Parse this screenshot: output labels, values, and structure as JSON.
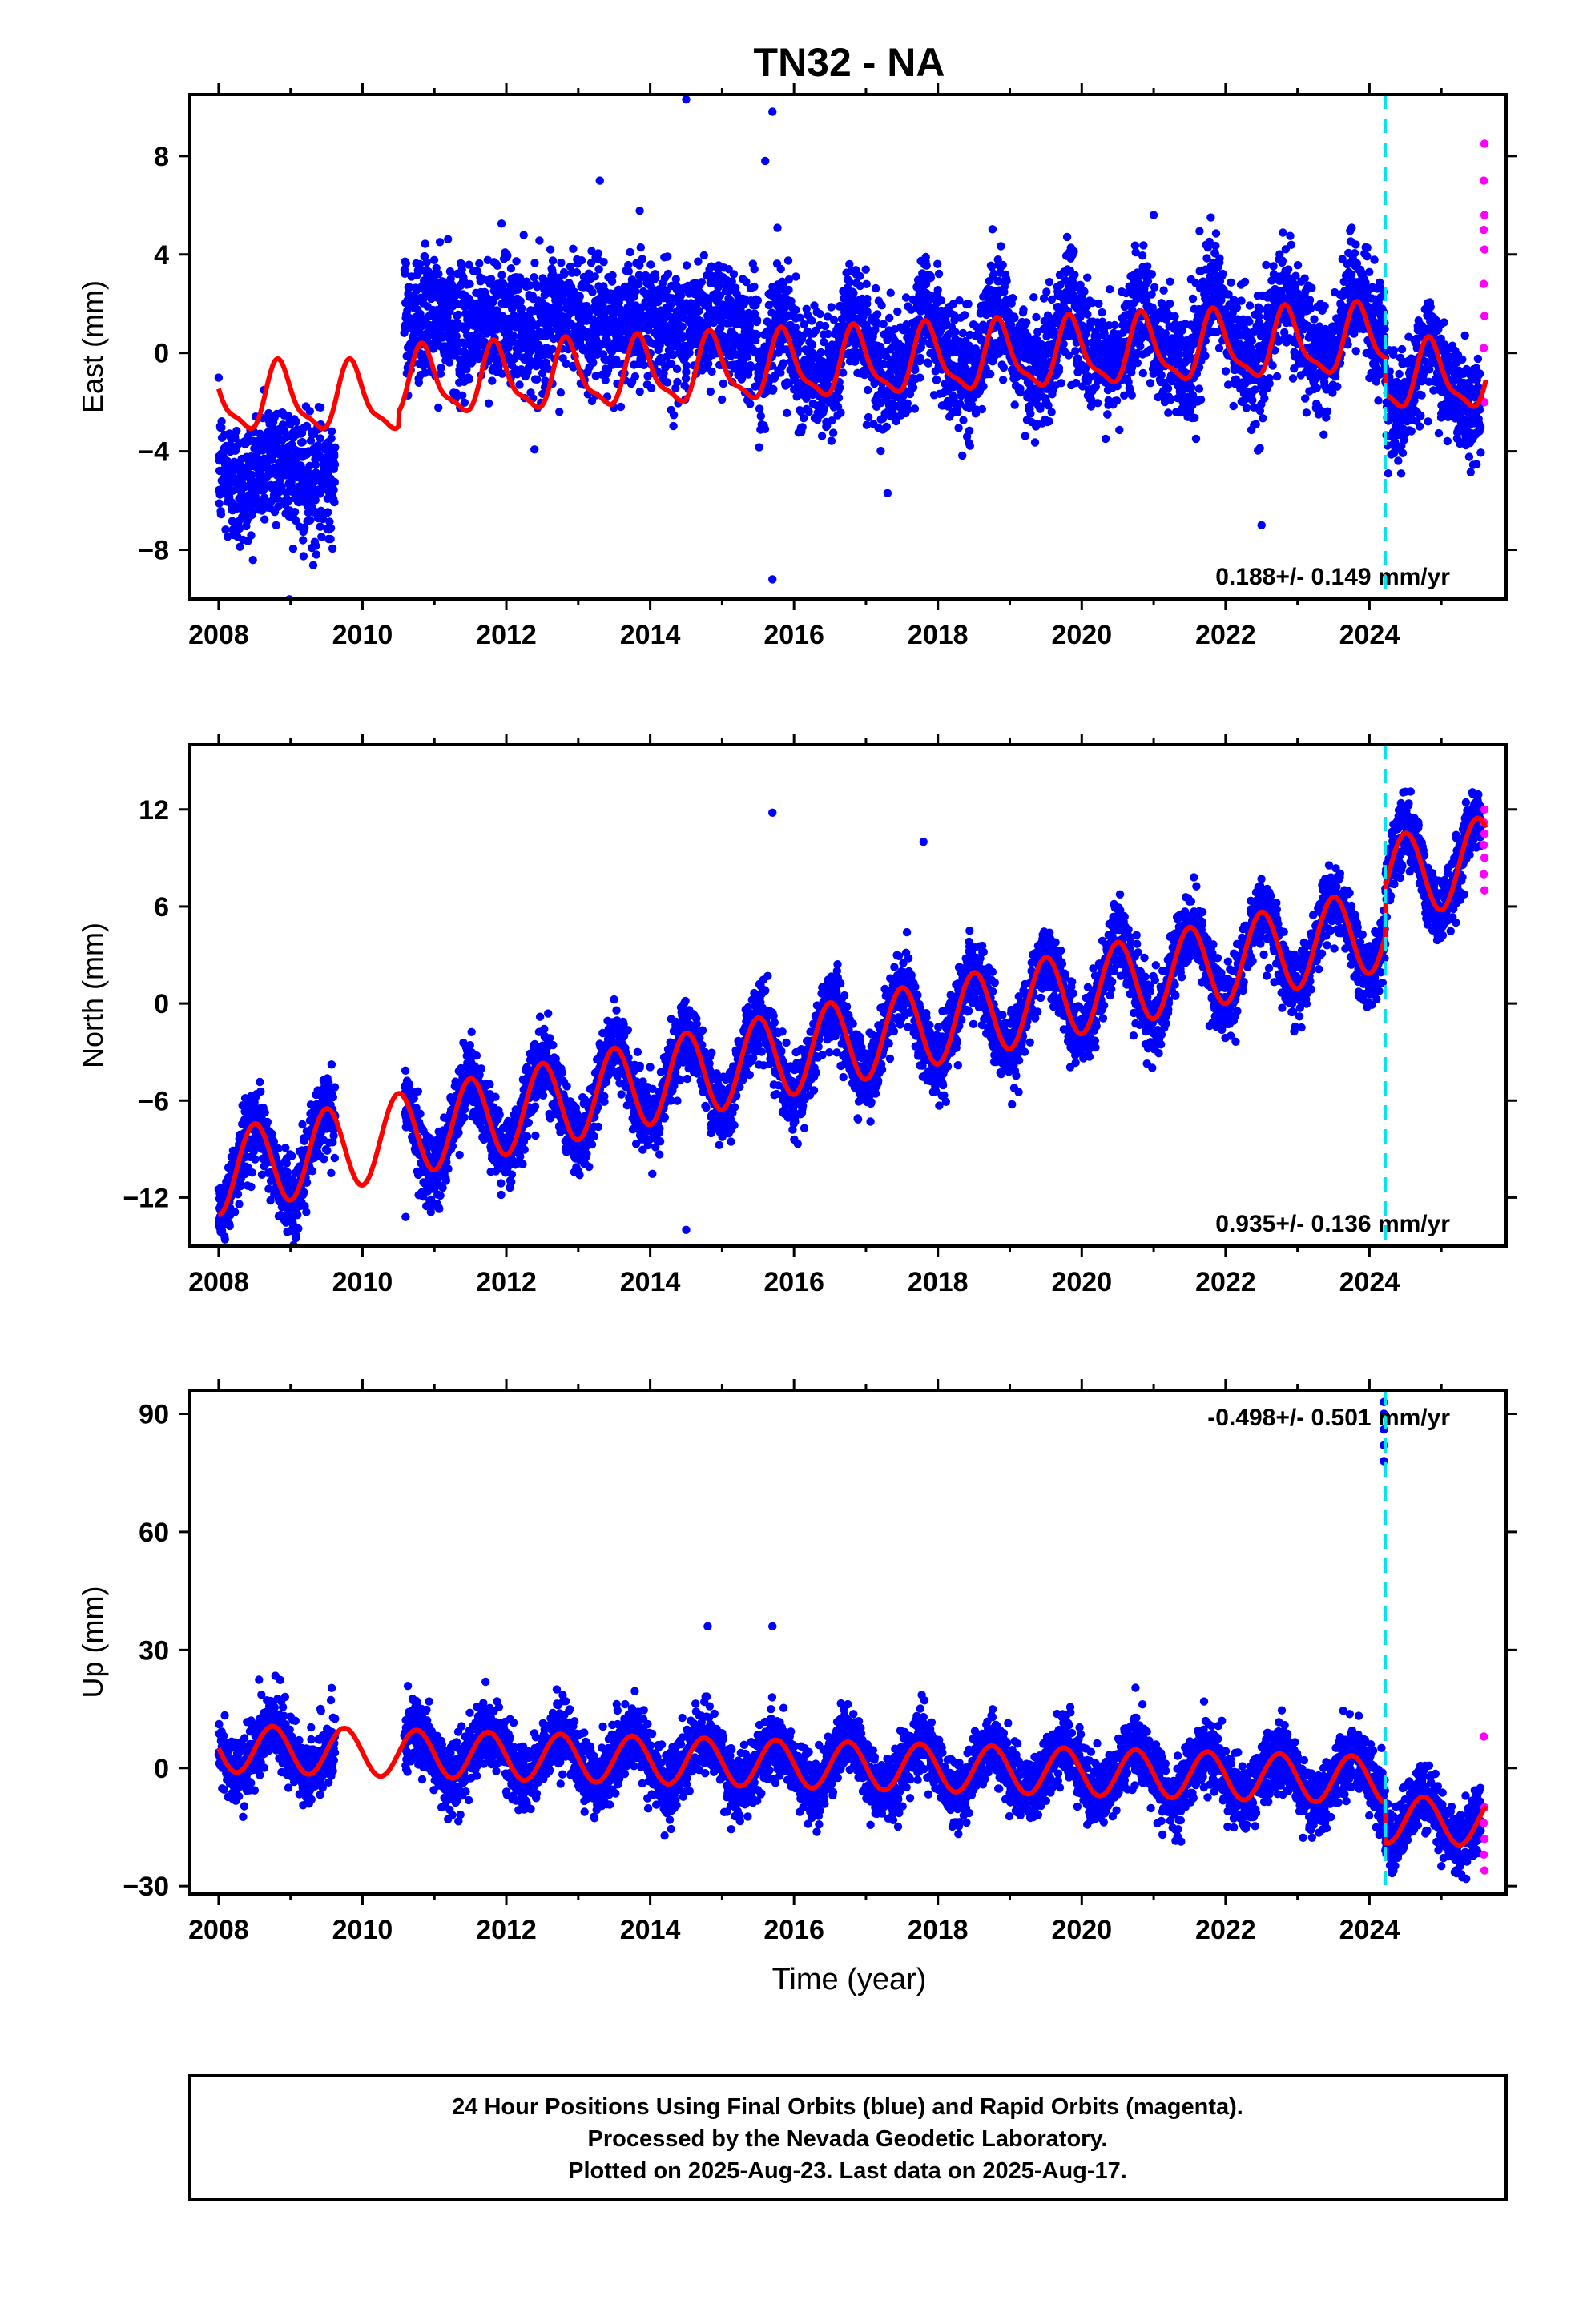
{
  "title": "TN32 - NA",
  "x_label": "Time (year)",
  "footer": {
    "line1": "24 Hour Positions Using Final Orbits (blue) and Rapid Orbits (magenta).",
    "line2": "Processed by the Nevada Geodetic Laboratory.",
    "line3": "Plotted on 2025-Aug-23. Last data on 2025-Aug-17."
  },
  "colors": {
    "final_orbits": "#0000ff",
    "rapid_orbits": "#ff00ff",
    "model_fit": "#ff0000",
    "event_line": "#00e5ee"
  },
  "chart_data": [
    {
      "type": "scatter",
      "component": "East",
      "ylabel": "East (mm)",
      "xlim": [
        2007.6,
        2025.9
      ],
      "ylim": [
        -10,
        10.5
      ],
      "yticks": [
        -8,
        -4,
        0,
        4,
        8
      ],
      "xticks": [
        2008,
        2010,
        2012,
        2014,
        2016,
        2018,
        2020,
        2022,
        2024
      ],
      "rate": "0.188+/- 0.149 mm/yr",
      "rate_value": 0.188,
      "event_year": 2024.22,
      "model": {
        "segments": [
          [
            2008.0,
            2010.5,
            -1.8
          ],
          [
            2010.5,
            2024.22,
            -1.3
          ],
          [
            2024.22,
            2025.6,
            -1.0
          ]
        ],
        "amplitude": 1.3,
        "phase_peak": 0.85,
        "semi_amplitude": 0.4,
        "offsets": {
          "2010.6": 0.0
        }
      },
      "scatter_ranges": [
        {
          "from": 2008.0,
          "to": 2009.6,
          "center": -4.8,
          "spread": 3.0
        },
        {
          "from": 2010.6,
          "to": 2015.5,
          "center": 1.2,
          "spread": 3.2
        },
        {
          "from": 2015.5,
          "to": 2024.22,
          "center": 0.0,
          "spread": 3.0
        },
        {
          "from": 2024.22,
          "to": 2025.5,
          "center": -1.2,
          "spread": 2.4
        }
      ],
      "rapid_points": [
        -2.0,
        0.2,
        1.5,
        2.8,
        4.2,
        5.0,
        5.6,
        7.0,
        8.5
      ],
      "outliers": [
        [
          2014.5,
          10.3
        ],
        [
          2015.7,
          9.8
        ],
        [
          2015.6,
          7.8
        ],
        [
          2021.0,
          5.6
        ],
        [
          2015.7,
          -9.2
        ],
        [
          2022.5,
          -7.0
        ],
        [
          2017.3,
          -5.7
        ],
        [
          2013.3,
          7.0
        ]
      ]
    },
    {
      "type": "scatter",
      "component": "North",
      "ylabel": "North (mm)",
      "xlim": [
        2007.6,
        2025.9
      ],
      "ylim": [
        -15,
        16
      ],
      "yticks": [
        -12,
        -6,
        0,
        6,
        12
      ],
      "xticks": [
        2008,
        2010,
        2012,
        2014,
        2016,
        2018,
        2020,
        2022,
        2024
      ],
      "rate": "0.935+/- 0.136 mm/yr",
      "rate_value": 0.935,
      "event_year": 2024.22,
      "model": {
        "start_year": 2008.0,
        "start_value": -10.5,
        "trend": 0.935,
        "amplitude": 2.6,
        "phase_peak": 0.5,
        "jump_at_event": 3.0
      },
      "scatter_spread": 2.4,
      "rapid_points": [
        7.0,
        8.0,
        9.0,
        9.8,
        10.5,
        11.2,
        12.0
      ],
      "outliers": [
        [
          2015.7,
          11.8
        ],
        [
          2014.5,
          -14.0
        ],
        [
          2010.6,
          -13.2
        ],
        [
          2017.8,
          10.0
        ]
      ]
    },
    {
      "type": "scatter",
      "component": "Up",
      "ylabel": "Up (mm)",
      "xlim": [
        2007.6,
        2025.9
      ],
      "ylim": [
        -32,
        96
      ],
      "yticks": [
        -30,
        0,
        30,
        60,
        90
      ],
      "xticks": [
        2008,
        2010,
        2012,
        2014,
        2016,
        2018,
        2020,
        2022,
        2024
      ],
      "rate": "-0.498+/- 0.501 mm/yr",
      "rate_value": -0.498,
      "event_year": 2024.22,
      "model": {
        "start_year": 2008.0,
        "start_value": 5.0,
        "trend": -0.498,
        "amplitude": 6.0,
        "phase_peak": 0.75,
        "jump_at_event": -10.0
      },
      "scatter_spread": 9.0,
      "rapid_points": [
        -26,
        -22,
        -18,
        -14,
        -10,
        8
      ],
      "outliers": [
        [
          2014.8,
          36
        ],
        [
          2015.7,
          36
        ],
        [
          2024.2,
          82
        ],
        [
          2024.2,
          86
        ],
        [
          2024.2,
          90
        ],
        [
          2024.2,
          93
        ],
        [
          2024.2,
          78
        ]
      ]
    }
  ]
}
